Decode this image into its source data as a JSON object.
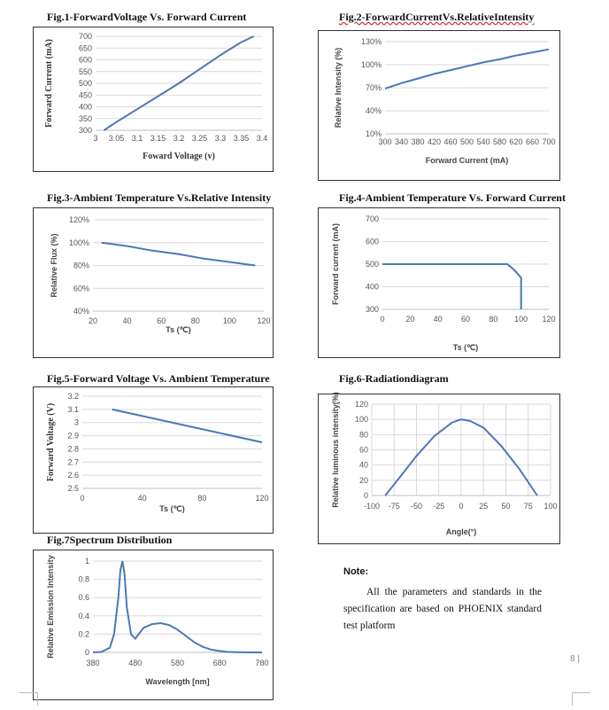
{
  "figures": {
    "fig1": {
      "title": "Fig.1-ForwardVoltage Vs. Forward Current"
    },
    "fig2": {
      "title": "Fig.2-ForwardCurrentVs.RelativeIntensity"
    },
    "fig3": {
      "title": "Fig.3-Ambient Temperature Vs.Relative Intensity"
    },
    "fig4": {
      "title": "Fig.4-Ambient Temperature Vs. Forward Current"
    },
    "fig5": {
      "title": "Fig.5-Forward Voltage Vs. Ambient Temperature"
    },
    "fig6": {
      "title": "Fig.6-Radiationdiagram"
    },
    "fig7": {
      "title": "Fig.7Spectrum Distribution"
    }
  },
  "note": {
    "heading": "Note:",
    "body": "All the parameters and standards in the specification are based on PHOENIX standard test platform"
  },
  "page_number": "8",
  "chart_data": [
    {
      "id": "fig1",
      "type": "line",
      "title": "Fig.1-ForwardVoltage Vs. Forward Current",
      "xlabel": "Foward Voltage (v)",
      "ylabel": "Forward Current (mA)",
      "xlim": [
        3,
        3.4
      ],
      "ylim": [
        300,
        700
      ],
      "xticks": [
        "3",
        "3.05",
        "3.1",
        "3.15",
        "3.2",
        "3.25",
        "3.3",
        "3.35",
        "3.4"
      ],
      "yticks": [
        "300",
        "350",
        "400",
        "450",
        "500",
        "550",
        "600",
        "650",
        "700"
      ],
      "grid": true,
      "color": "#4a78b8",
      "x": [
        3.02,
        3.05,
        3.1,
        3.15,
        3.2,
        3.25,
        3.3,
        3.35,
        3.38
      ],
      "y": [
        300,
        335,
        390,
        445,
        500,
        560,
        620,
        675,
        700
      ]
    },
    {
      "id": "fig2",
      "type": "line",
      "title": "Fig.2-ForwardCurrentVs.RelativeIntensity",
      "xlabel": "Forward Current (mA)",
      "ylabel": "Relative Intensity (%)",
      "xlim": [
        300,
        700
      ],
      "ylim": [
        10,
        130
      ],
      "xticks": [
        "300",
        "340",
        "380",
        "420",
        "460",
        "500",
        "540",
        "580",
        "620",
        "660",
        "700"
      ],
      "yticks": [
        "10%",
        "40%",
        "70%",
        "100%",
        "130%"
      ],
      "grid": true,
      "color": "#4a78b8",
      "x": [
        300,
        340,
        380,
        420,
        460,
        500,
        540,
        580,
        620,
        660,
        700
      ],
      "y": [
        69,
        76,
        82,
        88,
        93,
        98,
        103,
        107,
        112,
        116,
        120
      ]
    },
    {
      "id": "fig3",
      "type": "line",
      "title": "Fig.3-Ambient Temperature Vs.Relative Intensity",
      "xlabel": "Ts (℃)",
      "ylabel": "Relative Flux (%)",
      "xlim": [
        20,
        120
      ],
      "ylim": [
        40,
        120
      ],
      "xticks": [
        "20",
        "40",
        "60",
        "80",
        "100",
        "120"
      ],
      "yticks": [
        "40%",
        "60%",
        "80%",
        "100%",
        "120%"
      ],
      "grid": true,
      "color": "#4a78b8",
      "x": [
        25,
        40,
        55,
        70,
        85,
        100,
        115
      ],
      "y": [
        100,
        97,
        93,
        90,
        86,
        83,
        80
      ]
    },
    {
      "id": "fig4",
      "type": "line",
      "title": "Fig.4-Ambient Temperature Vs. Forward Current",
      "xlabel": "Ts (℃)",
      "ylabel": "Forward current (mA)",
      "xlim": [
        0,
        120
      ],
      "ylim": [
        300,
        700
      ],
      "xticks": [
        "0",
        "20",
        "40",
        "60",
        "80",
        "100",
        "120"
      ],
      "yticks": [
        "300",
        "400",
        "500",
        "600",
        "700"
      ],
      "grid": true,
      "color": "#4a78b8",
      "x": [
        0,
        90,
        95,
        100,
        100
      ],
      "y": [
        500,
        500,
        475,
        440,
        300
      ]
    },
    {
      "id": "fig5",
      "type": "line",
      "title": "Fig.5-Forward Voltage Vs. Ambient Temperature",
      "xlabel": "Ts (℃)",
      "ylabel": "Forward Voltage (V)",
      "xlim": [
        0,
        120
      ],
      "ylim": [
        2.5,
        3.2
      ],
      "xticks": [
        "0",
        "40",
        "80",
        "120"
      ],
      "yticks": [
        "2.5",
        "2.6",
        "2.7",
        "2.8",
        "2.9",
        "3",
        "3.1",
        "3.2"
      ],
      "grid": true,
      "color": "#4a78b8",
      "x": [
        20,
        120
      ],
      "y": [
        3.1,
        2.85
      ]
    },
    {
      "id": "fig6",
      "type": "line",
      "title": "Fig.6-Radiationdiagram",
      "xlabel": "Angle(°)",
      "ylabel": "Relative luminous intensity(%)",
      "xlim": [
        -100,
        100
      ],
      "ylim": [
        0,
        120
      ],
      "xticks": [
        "-100",
        "-75",
        "-50",
        "-25",
        "0",
        "25",
        "50",
        "75",
        "100"
      ],
      "yticks": [
        "0",
        "20",
        "40",
        "60",
        "80",
        "100",
        "120"
      ],
      "grid": true,
      "color": "#4a78b8",
      "x": [
        -85,
        -70,
        -50,
        -30,
        -10,
        0,
        10,
        25,
        45,
        65,
        85
      ],
      "y": [
        0,
        22,
        52,
        78,
        96,
        100,
        98,
        89,
        65,
        35,
        0
      ]
    },
    {
      "id": "fig7",
      "type": "line",
      "title": "Fig.7Spectrum Distribution",
      "xlabel": "Wavelength [nm]",
      "ylabel": "Relative Emission Intensity",
      "xlim": [
        380,
        780
      ],
      "ylim": [
        0,
        1
      ],
      "xticks": [
        "380",
        "480",
        "580",
        "680",
        "780"
      ],
      "yticks": [
        "0",
        "0.2",
        "0.4",
        "0.6",
        "0.8",
        "1"
      ],
      "grid": true,
      "color": "#4a78b8",
      "x": [
        380,
        400,
        420,
        430,
        440,
        445,
        450,
        455,
        460,
        470,
        480,
        490,
        500,
        520,
        540,
        560,
        580,
        600,
        620,
        640,
        660,
        680,
        700,
        720,
        750,
        780
      ],
      "y": [
        0,
        0.005,
        0.05,
        0.2,
        0.6,
        0.9,
        1.0,
        0.85,
        0.5,
        0.2,
        0.15,
        0.21,
        0.27,
        0.31,
        0.32,
        0.3,
        0.25,
        0.18,
        0.11,
        0.06,
        0.03,
        0.015,
        0.005,
        0.002,
        0,
        0
      ]
    }
  ]
}
